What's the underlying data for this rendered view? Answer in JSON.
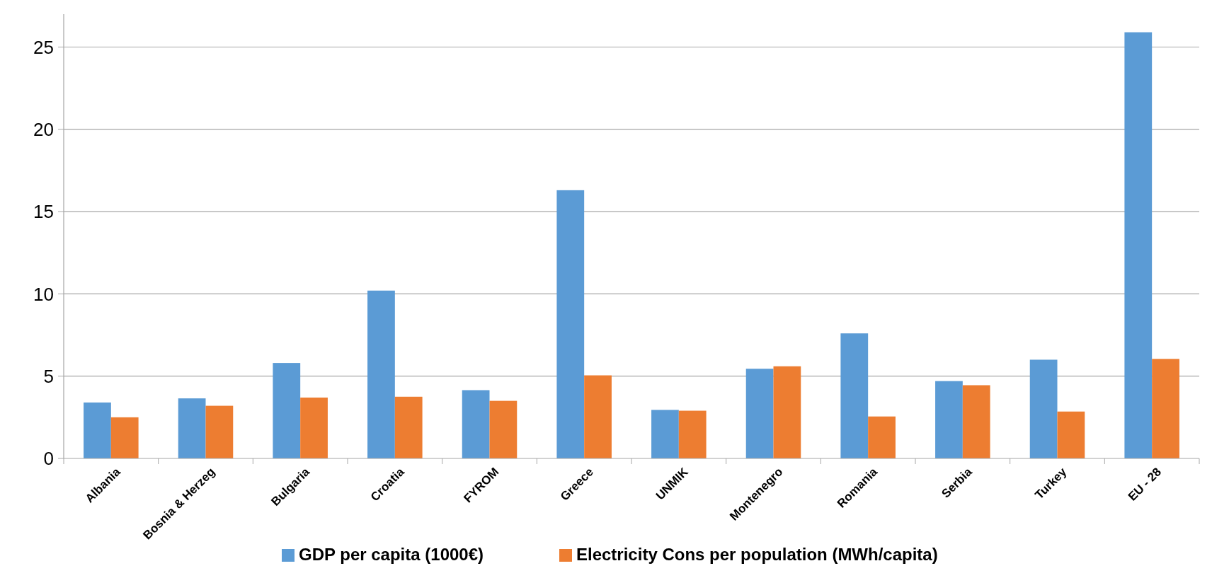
{
  "chart_data": {
    "type": "bar",
    "categories": [
      "Albania",
      "Bosnia & Herzeg",
      "Bulgaria",
      "Croatia",
      "FYROM",
      "Greece",
      "UNMIK",
      "Montenegro",
      "Romania",
      "Serbia",
      "Turkey",
      "EU - 28"
    ],
    "series": [
      {
        "name": "GDP per capita (1000€)",
        "color": "#5b9bd5",
        "values": [
          3.4,
          3.65,
          5.8,
          10.2,
          4.15,
          16.3,
          2.95,
          5.45,
          7.6,
          4.7,
          6.0,
          25.9
        ]
      },
      {
        "name": "Electricity Cons per population (MWh/capita)",
        "color": "#ed7d31",
        "values": [
          2.5,
          3.2,
          3.7,
          3.75,
          3.5,
          5.05,
          2.9,
          5.6,
          2.55,
          4.45,
          2.85,
          6.05
        ]
      }
    ],
    "ylim": [
      0,
      27
    ],
    "yticks": [
      0,
      5,
      10,
      15,
      20,
      25
    ],
    "grid": "y",
    "legend": "bottom"
  }
}
